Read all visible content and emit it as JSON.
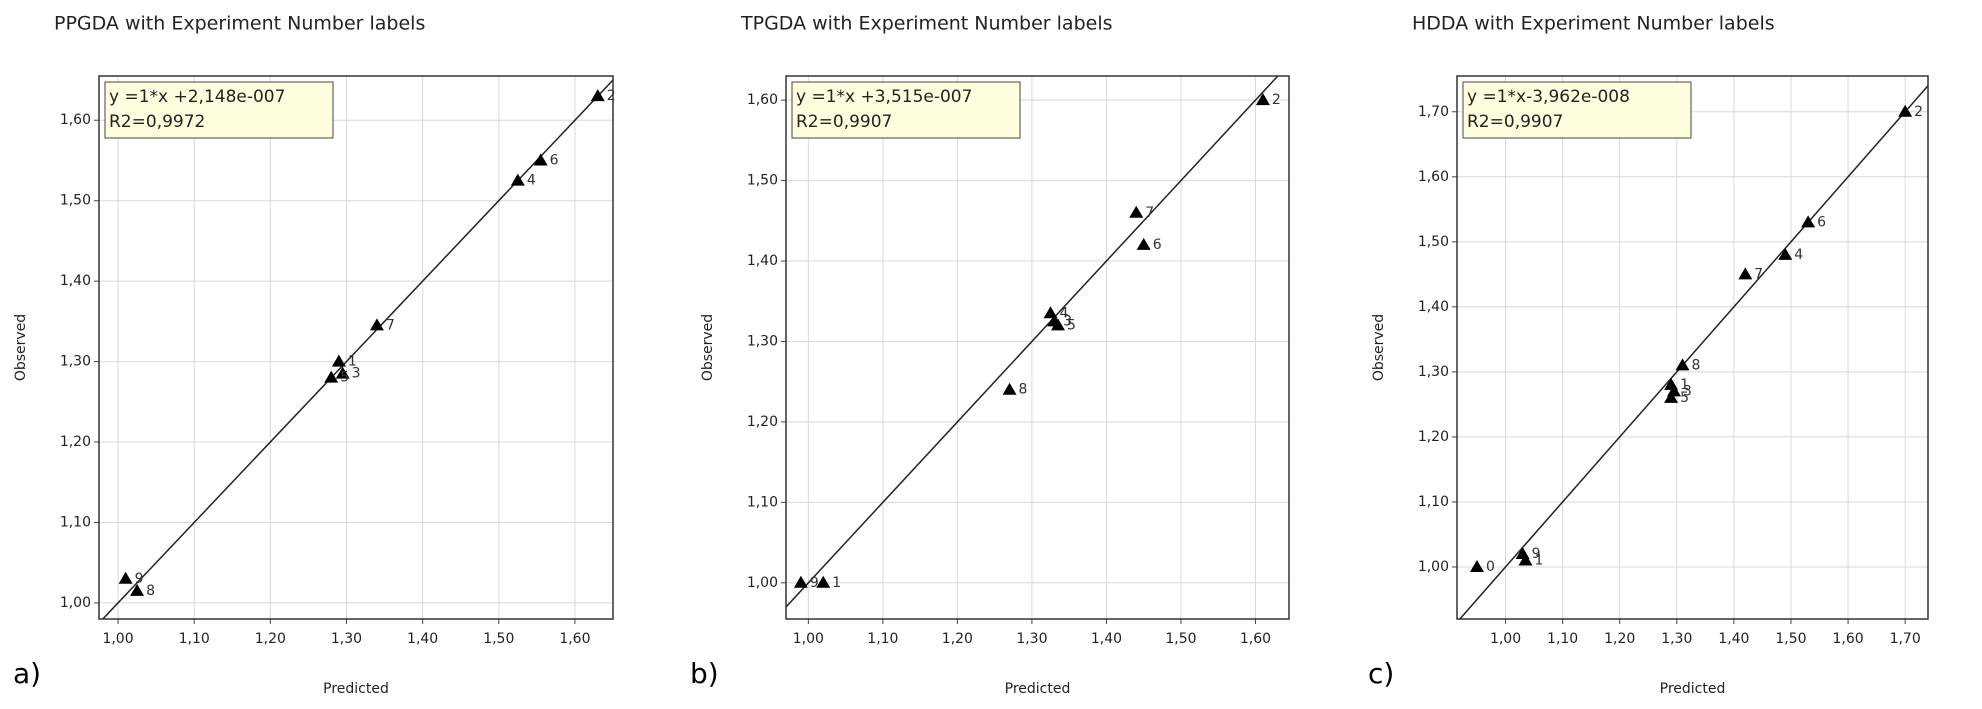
{
  "chart_data": [
    {
      "type": "scatter",
      "title": "PPGDA with Experiment Number labels",
      "xlabel": "Predicted",
      "ylabel": "Observed",
      "panel_label": "a)",
      "annotations": [
        "y =1*x +2,148e-007",
        "R2=0,9972"
      ],
      "fit_line": {
        "slope": 1,
        "intercept": 2.148e-07
      },
      "x": [
        1.63,
        1.555,
        1.525,
        1.34,
        1.29,
        1.295,
        1.28,
        1.01,
        1.025
      ],
      "y": [
        1.63,
        1.55,
        1.525,
        1.345,
        1.3,
        1.285,
        1.28,
        1.03,
        1.015
      ],
      "point_labels": [
        "2",
        "6",
        "4",
        "7",
        "1",
        "3",
        "5",
        "9",
        "8"
      ],
      "color": "#000000",
      "xlim": [
        0.975,
        1.65
      ],
      "ylim": [
        0.98,
        1.655
      ],
      "xticks": [
        {
          "value": 1.0,
          "label": "1,00"
        },
        {
          "value": 1.1,
          "label": "1,10"
        },
        {
          "value": 1.2,
          "label": "1,20"
        },
        {
          "value": 1.3,
          "label": "1,30"
        },
        {
          "value": 1.4,
          "label": "1,40"
        },
        {
          "value": 1.5,
          "label": "1,50"
        },
        {
          "value": 1.6,
          "label": "1,60"
        }
      ],
      "yticks": [
        {
          "value": 1.0,
          "label": "1,00"
        },
        {
          "value": 1.1,
          "label": "1,10"
        },
        {
          "value": 1.2,
          "label": "1,20"
        },
        {
          "value": 1.3,
          "label": "1,30"
        },
        {
          "value": 1.4,
          "label": "1,40"
        },
        {
          "value": 1.5,
          "label": "1,50"
        },
        {
          "value": 1.6,
          "label": "1,60"
        }
      ],
      "grid": true
    },
    {
      "type": "scatter",
      "title": "TPGDA with Experiment Number labels",
      "xlabel": "Predicted",
      "ylabel": "Observed",
      "panel_label": "b)",
      "annotations": [
        "y =1*x +3,515e-007",
        "R2=0,9907"
      ],
      "fit_line": {
        "slope": 1,
        "intercept": 3.515e-07
      },
      "x": [
        1.61,
        1.44,
        1.45,
        1.325,
        1.33,
        1.335,
        1.27,
        1.02,
        0.99
      ],
      "y": [
        1.6,
        1.46,
        1.42,
        1.335,
        1.325,
        1.32,
        1.24,
        1.0,
        1.0
      ],
      "point_labels": [
        "2",
        "7",
        "6",
        "4",
        "3",
        "5",
        "8",
        "1",
        "9"
      ],
      "color": "#000000",
      "xlim": [
        0.97,
        1.645
      ],
      "ylim": [
        0.955,
        1.63
      ],
      "xticks": [
        {
          "value": 1.0,
          "label": "1,00"
        },
        {
          "value": 1.1,
          "label": "1,10"
        },
        {
          "value": 1.2,
          "label": "1,20"
        },
        {
          "value": 1.3,
          "label": "1,30"
        },
        {
          "value": 1.4,
          "label": "1,40"
        },
        {
          "value": 1.5,
          "label": "1,50"
        },
        {
          "value": 1.6,
          "label": "1,60"
        }
      ],
      "yticks": [
        {
          "value": 1.0,
          "label": "1,00"
        },
        {
          "value": 1.1,
          "label": "1,10"
        },
        {
          "value": 1.2,
          "label": "1,20"
        },
        {
          "value": 1.3,
          "label": "1,30"
        },
        {
          "value": 1.4,
          "label": "1,40"
        },
        {
          "value": 1.5,
          "label": "1,50"
        },
        {
          "value": 1.6,
          "label": "1,60"
        }
      ],
      "grid": true
    },
    {
      "type": "scatter",
      "title": "HDDA with Experiment Number labels",
      "xlabel": "Predicted",
      "ylabel": "Observed",
      "panel_label": "c)",
      "annotations": [
        "y =1*x-3,962e-008",
        "R2=0,9907"
      ],
      "fit_line": {
        "slope": 1,
        "intercept": -3.962e-08
      },
      "x": [
        1.7,
        1.53,
        1.49,
        1.42,
        1.31,
        1.29,
        1.295,
        1.29,
        1.03,
        1.035,
        0.95
      ],
      "y": [
        1.7,
        1.53,
        1.48,
        1.45,
        1.31,
        1.28,
        1.27,
        1.26,
        1.02,
        1.01,
        1.0
      ],
      "point_labels": [
        "2",
        "6",
        "4",
        "7",
        "8",
        "1",
        "3",
        "5",
        "9",
        "1",
        "0"
      ],
      "color": "#000000",
      "xlim": [
        0.915,
        1.74
      ],
      "ylim": [
        0.92,
        1.755
      ],
      "xticks": [
        {
          "value": 1.0,
          "label": "1,00"
        },
        {
          "value": 1.1,
          "label": "1,10"
        },
        {
          "value": 1.2,
          "label": "1,20"
        },
        {
          "value": 1.3,
          "label": "1,30"
        },
        {
          "value": 1.4,
          "label": "1,40"
        },
        {
          "value": 1.5,
          "label": "1,50"
        },
        {
          "value": 1.6,
          "label": "1,60"
        },
        {
          "value": 1.7,
          "label": "1,70"
        }
      ],
      "yticks": [
        {
          "value": 1.0,
          "label": "1,00"
        },
        {
          "value": 1.1,
          "label": "1,10"
        },
        {
          "value": 1.2,
          "label": "1,20"
        },
        {
          "value": 1.3,
          "label": "1,30"
        },
        {
          "value": 1.4,
          "label": "1,40"
        },
        {
          "value": 1.5,
          "label": "1,50"
        },
        {
          "value": 1.6,
          "label": "1,60"
        },
        {
          "value": 1.7,
          "label": "1,70"
        }
      ],
      "grid": true
    }
  ]
}
